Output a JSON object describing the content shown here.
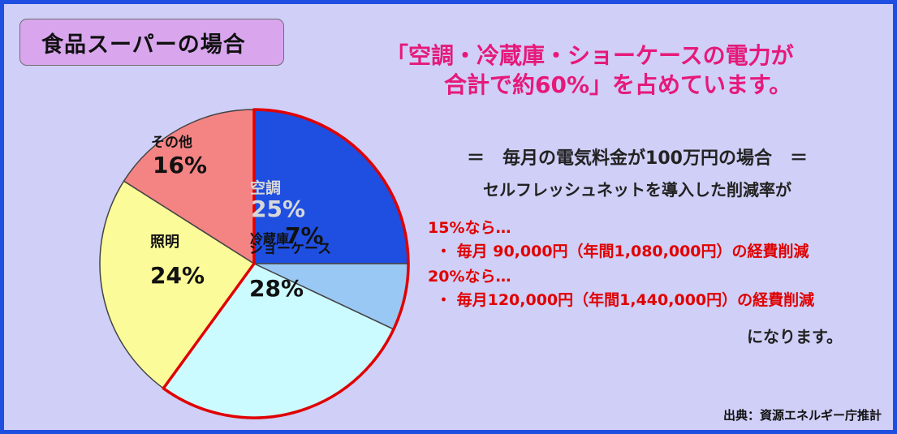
{
  "panel_title": "食品スーパーの場合",
  "headline": {
    "line1": "「空調・冷蔵庫・ショーケースの電力が",
    "line2": "合計で約60%」を占めています。"
  },
  "colors": {
    "frame": "#1f4fe0",
    "background": "#cfcff7",
    "headline": "#e6197a",
    "highlight_text": "#e00000",
    "slice_border": "#e00000"
  },
  "chart_data": {
    "type": "pie",
    "categories": [
      "空調",
      "冷蔵庫",
      "ショーケース",
      "照明",
      "その他"
    ],
    "values": [
      25,
      7,
      28,
      24,
      16
    ],
    "value_labels": [
      "25%",
      "7%",
      "28%",
      "24%",
      "16%"
    ],
    "slice_colors": [
      "#1f4fe0",
      "#99c8f4",
      "#ccfbff",
      "#fbfb99",
      "#f48484"
    ],
    "highlighted": [
      "空調",
      "冷蔵庫",
      "ショーケース"
    ]
  },
  "info": {
    "line1": "＝　毎月の電気料金が100万円の場合　＝",
    "line2": "セルフレッシュネットを導入した削減率が",
    "case1_heading": "15%なら…",
    "case1_detail": "・ 毎月 90,000円（年間1,080,000円）の経費削減",
    "case2_heading": "20%なら…",
    "case2_detail": "・ 毎月120,000円（年間1,440,000円）の経費削減",
    "closing": "になります。"
  },
  "source": "出典：資源エネルギー庁推計"
}
